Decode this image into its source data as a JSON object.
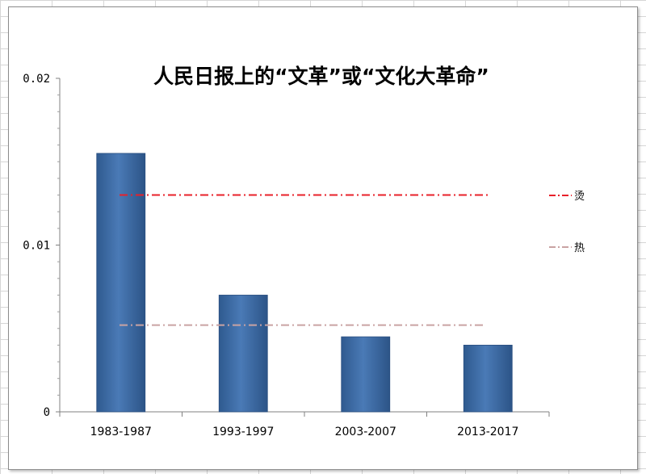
{
  "chart_data": {
    "type": "bar",
    "title": "人民日报上的“文革”或“文化大革命”",
    "xlabel": "",
    "ylabel": "",
    "categories": [
      "1983-1987",
      "1993-1997",
      "2003-2007",
      "2013-2017"
    ],
    "values": [
      0.0155,
      0.007,
      0.0045,
      0.004
    ],
    "ylim": [
      0,
      0.02
    ],
    "yticks": [
      "0",
      "0.01",
      "0.02"
    ],
    "ytick_values": [
      0,
      0.01,
      0.02
    ],
    "bar_color": "#3f6ea8",
    "reference_lines": [
      {
        "name": "烫",
        "value": 0.013,
        "color": "#e8202a",
        "style": "dash-dot"
      },
      {
        "name": "热",
        "value": 0.0052,
        "color": "#c9a3a3",
        "style": "dash-dot"
      }
    ],
    "legend_position": "right",
    "grid": false
  }
}
